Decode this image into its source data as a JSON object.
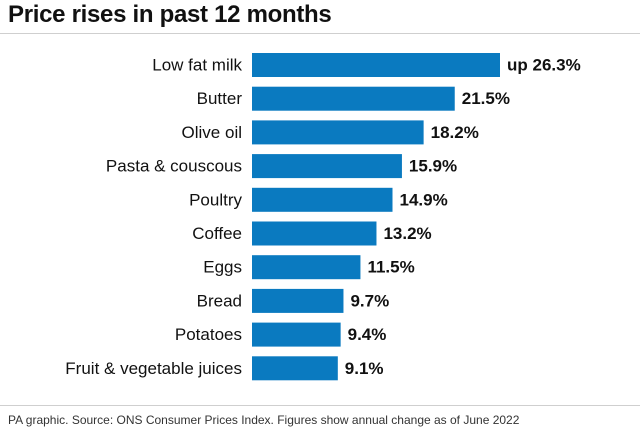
{
  "title": "Price rises in past 12 months",
  "footer": "PA graphic. Source: ONS Consumer Prices Index. Figures show annual change as of June 2022",
  "colors": {
    "bar": "#0a7ac0",
    "text": "#111111"
  },
  "chart_data": {
    "type": "bar",
    "orientation": "horizontal",
    "title": "Price rises in past 12 months",
    "categories": [
      "Low fat milk",
      "Butter",
      "Olive oil",
      "Pasta & couscous",
      "Poultry",
      "Coffee",
      "Eggs",
      "Bread",
      "Potatoes",
      "Fruit & vegetable juices"
    ],
    "values": [
      26.3,
      21.5,
      18.2,
      15.9,
      14.9,
      13.2,
      11.5,
      9.7,
      9.4,
      9.1
    ],
    "value_labels": [
      "up 26.3%",
      "21.5%",
      "18.2%",
      "15.9%",
      "14.9%",
      "13.2%",
      "11.5%",
      "9.7%",
      "9.4%",
      "9.1%"
    ],
    "unit": "%",
    "xlim": [
      0,
      26.3
    ],
    "grid": false,
    "legend": "none"
  }
}
